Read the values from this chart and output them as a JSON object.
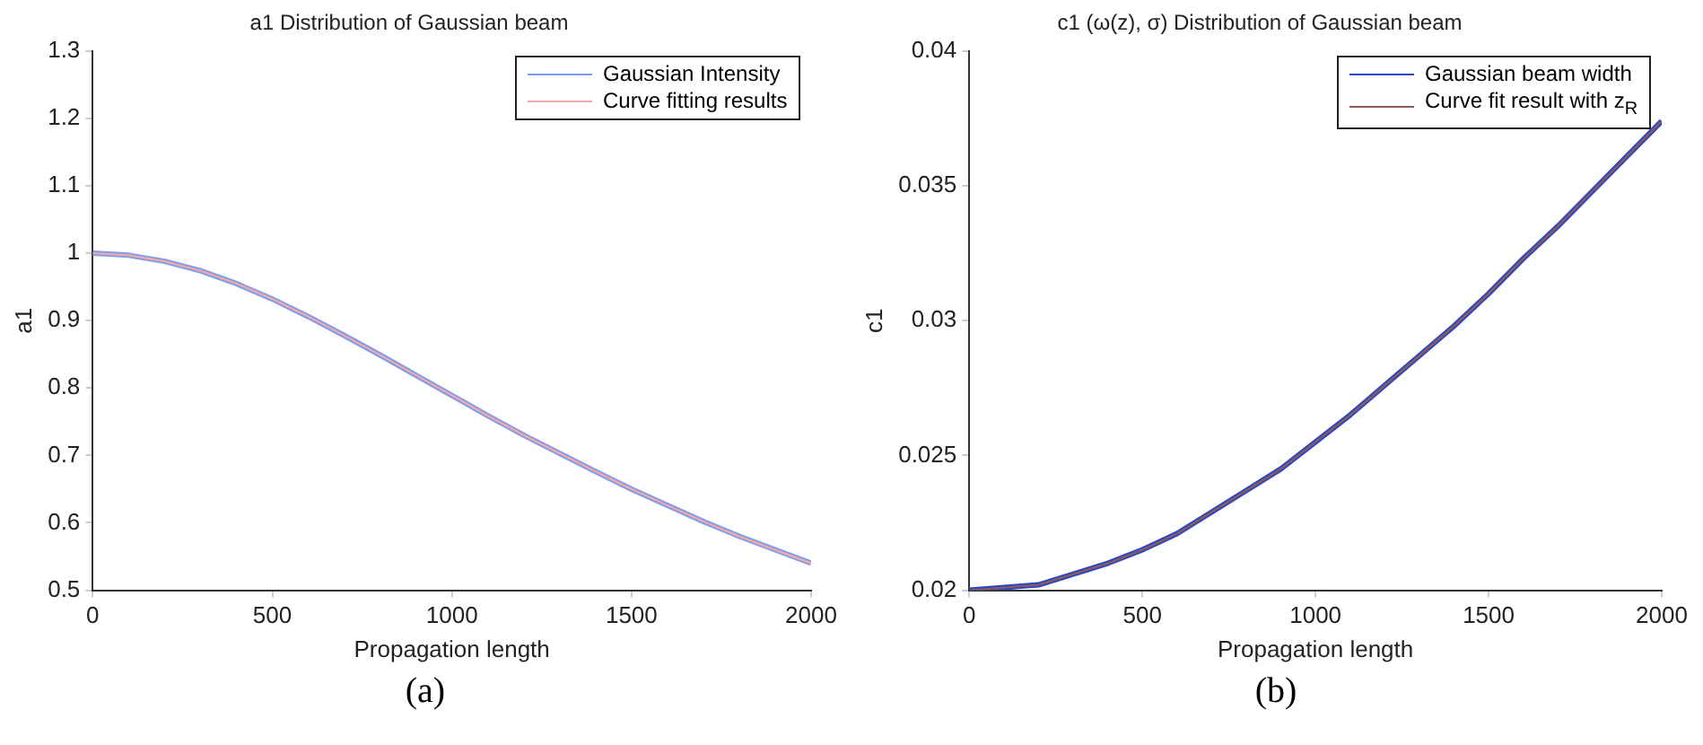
{
  "chart_data": [
    {
      "type": "line",
      "title": "a1 Distribution of Gaussian beam",
      "xlabel": "Propagation length",
      "ylabel": "a1",
      "x": [
        0,
        100,
        200,
        300,
        400,
        500,
        600,
        700,
        800,
        900,
        1000,
        1100,
        1200,
        1300,
        1400,
        1500,
        1600,
        1700,
        1800,
        1900,
        2000
      ],
      "series": [
        {
          "name": "Gaussian Intensity",
          "color": "#7a9cf0",
          "values": [
            1.0,
            0.997,
            0.988,
            0.974,
            0.955,
            0.932,
            0.906,
            0.878,
            0.849,
            0.819,
            0.789,
            0.759,
            0.73,
            0.703,
            0.676,
            0.65,
            0.626,
            0.602,
            0.58,
            0.56,
            0.54
          ]
        },
        {
          "name": "Curve fitting results",
          "color": "#f0a8a8",
          "values": [
            1.0,
            0.997,
            0.988,
            0.974,
            0.955,
            0.932,
            0.906,
            0.878,
            0.849,
            0.819,
            0.789,
            0.759,
            0.73,
            0.703,
            0.676,
            0.65,
            0.626,
            0.602,
            0.58,
            0.56,
            0.54
          ]
        }
      ],
      "xlim": [
        0,
        2000
      ],
      "xticks": [
        0,
        500,
        1000,
        1500,
        2000
      ],
      "ylim": [
        0.5,
        1.3
      ],
      "yticks": [
        0.5,
        0.6,
        0.7,
        0.8,
        0.9,
        1,
        1.1,
        1.2,
        1.3
      ],
      "grid": false,
      "legend": "top right",
      "marker": "none",
      "line_style": "solid",
      "annotations": [
        "(a)"
      ]
    },
    {
      "type": "line",
      "title": "c1 (ω(z), σ) Distribution of Gaussian beam",
      "xlabel": "Propagation length",
      "ylabel": "c1",
      "x": [
        0,
        100,
        200,
        300,
        400,
        500,
        600,
        700,
        800,
        900,
        1000,
        1100,
        1200,
        1300,
        1400,
        1500,
        1600,
        1700,
        1800,
        1900,
        2000
      ],
      "series": [
        {
          "name": "Gaussian beam width",
          "color": "#2846c8",
          "values": [
            0.02,
            0.0201,
            0.0202,
            0.0206,
            0.021,
            0.0215,
            0.0221,
            0.0229,
            0.0237,
            0.0245,
            0.0255,
            0.0265,
            0.0276,
            0.0287,
            0.0298,
            0.031,
            0.0323,
            0.0335,
            0.0348,
            0.0361,
            0.0374
          ]
        },
        {
          "name": "Curve fit result with z$_{R}$",
          "color": "#8a5a5a",
          "values": [
            0.02,
            0.0201,
            0.0202,
            0.0206,
            0.021,
            0.0215,
            0.0221,
            0.0229,
            0.0237,
            0.0245,
            0.0255,
            0.0265,
            0.0276,
            0.0287,
            0.0298,
            0.031,
            0.0323,
            0.0335,
            0.0348,
            0.0361,
            0.0374
          ]
        }
      ],
      "xlim": [
        0,
        2000
      ],
      "xticks": [
        0,
        500,
        1000,
        1500,
        2000
      ],
      "ylim": [
        0.02,
        0.04
      ],
      "yticks": [
        0.02,
        0.025,
        0.03,
        0.035,
        0.04
      ],
      "grid": false,
      "legend": "top right",
      "marker": "none",
      "line_style": "solid",
      "annotations": [
        "(b)"
      ]
    }
  ]
}
